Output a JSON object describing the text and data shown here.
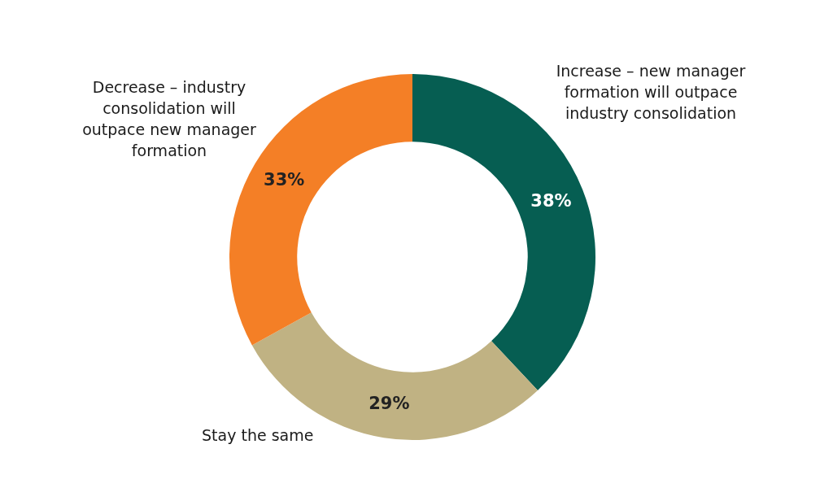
{
  "chart_data": {
    "type": "donut",
    "categories": [
      "Increase – new manager formation will outpace industry consolidation",
      "Stay the same",
      "Decrease – industry consolidation will outpace new manager formation"
    ],
    "values": [
      38,
      29,
      33
    ],
    "colors": [
      "#065e52",
      "#c0b283",
      "#f47f26"
    ],
    "value_labels": [
      "38%",
      "29%",
      "33%"
    ]
  }
}
